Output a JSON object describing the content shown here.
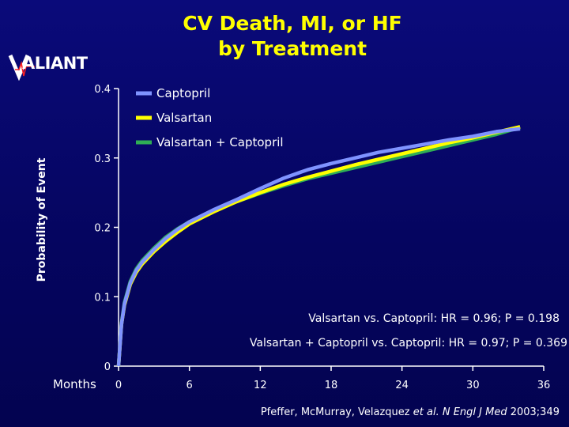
{
  "title_line1": "CV Death, MI, or HF",
  "title_line2": "by Treatment",
  "logo_text": "ALIANT",
  "colors": {
    "background": "#05056a",
    "title": "#ffff00",
    "axis": "#ffffff",
    "captopril": "#7f93ff",
    "valsartan": "#ffff00",
    "combo": "#2fae55"
  },
  "annotations": {
    "line1": "Valsartan vs. Captopril: HR = 0.96; P = 0.198",
    "line2": "Valsartan + Captopril vs. Captopril: HR = 0.97; P = 0.369"
  },
  "citation": {
    "authors": "Pfeffer, McMurray, Velazquez ",
    "etal": "et al. N Engl J Med",
    "year_vol": " 2003;349"
  },
  "chart_data": {
    "type": "line",
    "title": "CV Death, MI, or HF by Treatment",
    "xlabel": "Months",
    "ylabel": "Probability of Event",
    "xlim": [
      0,
      36
    ],
    "ylim": [
      0,
      0.4
    ],
    "x_ticks": [
      "0",
      "6",
      "12",
      "18",
      "24",
      "30",
      "36"
    ],
    "y_ticks": [
      "0",
      "0.1",
      "0.2",
      "0.3",
      "0.4"
    ],
    "legend_position": "top-left",
    "grid": false,
    "series": [
      {
        "name": "Captopril",
        "x": [
          0,
          0.25,
          0.5,
          1,
          1.5,
          2,
          3,
          4,
          5,
          6,
          8,
          10,
          12,
          14,
          16,
          18,
          20,
          22,
          24,
          26,
          28,
          30,
          32,
          34
        ],
        "y": [
          0,
          0.06,
          0.09,
          0.12,
          0.138,
          0.15,
          0.168,
          0.184,
          0.197,
          0.208,
          0.225,
          0.24,
          0.256,
          0.271,
          0.283,
          0.292,
          0.3,
          0.308,
          0.314,
          0.32,
          0.326,
          0.331,
          0.338,
          0.342
        ]
      },
      {
        "name": "Valsartan",
        "x": [
          0,
          0.25,
          0.5,
          1,
          1.5,
          2,
          3,
          4,
          5,
          6,
          8,
          10,
          12,
          14,
          16,
          18,
          20,
          22,
          24,
          26,
          28,
          30,
          32,
          34
        ],
        "y": [
          0,
          0.06,
          0.088,
          0.118,
          0.135,
          0.147,
          0.165,
          0.18,
          0.193,
          0.205,
          0.222,
          0.237,
          0.25,
          0.262,
          0.272,
          0.281,
          0.29,
          0.298,
          0.306,
          0.314,
          0.322,
          0.329,
          0.337,
          0.345
        ]
      },
      {
        "name": "Valsartan + Captopril",
        "x": [
          0,
          0.25,
          0.5,
          1,
          1.5,
          2,
          3,
          4,
          5,
          6,
          8,
          10,
          12,
          14,
          16,
          18,
          20,
          22,
          24,
          26,
          28,
          30,
          32,
          34
        ],
        "y": [
          0,
          0.062,
          0.092,
          0.122,
          0.14,
          0.152,
          0.17,
          0.186,
          0.198,
          0.208,
          0.224,
          0.237,
          0.249,
          0.26,
          0.27,
          0.278,
          0.286,
          0.294,
          0.302,
          0.31,
          0.318,
          0.326,
          0.334,
          0.344
        ]
      }
    ]
  }
}
